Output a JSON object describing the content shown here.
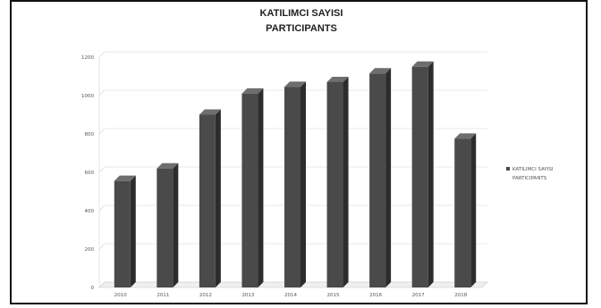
{
  "chart_data": {
    "type": "bar",
    "title_lines": [
      "KATILIMCI SAYISI",
      "PARTICIPANTS"
    ],
    "categories": [
      "2010",
      "2011",
      "2012",
      "2013",
      "2014",
      "2015",
      "2016",
      "2017",
      "2018"
    ],
    "series": [
      {
        "name_lines": [
          "KATILIMCI SAYISI",
          "PARTICIPANTS"
        ],
        "values": [
          555,
          620,
          900,
          1010,
          1045,
          1070,
          1115,
          1150,
          775
        ]
      }
    ],
    "y_ticks": [
      0,
      200,
      400,
      600,
      800,
      1000,
      1200
    ],
    "ylim": [
      0,
      1200
    ],
    "grid": true,
    "legend_position": "right",
    "bar_color": "#4a4a4a",
    "bar_side_color": "#2c2c2c",
    "bar_top_color": "#6e6e6e"
  }
}
